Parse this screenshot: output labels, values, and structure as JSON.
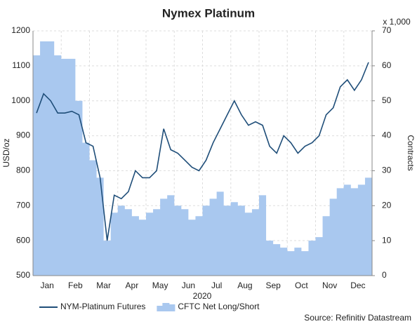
{
  "chart_data": {
    "type": "line-area",
    "title": "Nymex Platinum",
    "x_label": "2020",
    "y_label": "USD/oz",
    "y2_label": "Contracts",
    "y2_unit": "x 1,000",
    "source": "Source: Refinitiv Datastream",
    "categories": [
      "Jan",
      null,
      null,
      null,
      "Feb",
      null,
      null,
      null,
      "Mar",
      null,
      null,
      null,
      "Apr",
      null,
      null,
      null,
      "May",
      null,
      null,
      null,
      "Jun",
      null,
      null,
      null,
      "Jul",
      null,
      null,
      null,
      "Aug",
      null,
      null,
      null,
      "Sep",
      null,
      null,
      null,
      "Oct",
      null,
      null,
      null,
      "Nov",
      null,
      null,
      null,
      "Dec",
      null,
      null,
      null
    ],
    "series": [
      {
        "name": "NYM-Platinum Futures",
        "color": "#1f4e79",
        "type": "line",
        "values": [
          965,
          1020,
          1000,
          965,
          965,
          970,
          960,
          880,
          870,
          780,
          600,
          730,
          720,
          740,
          800,
          780,
          780,
          800,
          920,
          860,
          850,
          830,
          810,
          800,
          830,
          880,
          920,
          960,
          1000,
          960,
          930,
          940,
          930,
          870,
          850,
          900,
          880,
          850,
          870,
          880,
          900,
          960,
          980,
          1040,
          1060,
          1030,
          1060,
          1110
        ]
      },
      {
        "name": "CFTC Net Long/Short",
        "color": "#a9c8ef",
        "type": "area",
        "axis": "y2",
        "values": [
          63,
          67,
          67,
          63,
          62,
          62,
          50,
          38,
          33,
          28,
          10,
          18,
          20,
          19,
          17,
          16,
          18,
          19,
          22,
          23,
          20,
          19,
          16,
          17,
          20,
          22,
          24,
          20,
          21,
          20,
          18,
          19,
          23,
          10,
          9,
          8,
          7,
          8,
          7,
          10,
          11,
          17,
          22,
          25,
          26,
          25,
          26,
          28
        ]
      }
    ],
    "ylim": [
      500,
      1200
    ],
    "yticks": [
      500,
      600,
      700,
      800,
      900,
      1000,
      1100,
      1200
    ],
    "y2lim": [
      0,
      70
    ],
    "y2ticks": [
      0,
      10,
      20,
      30,
      40,
      50,
      60,
      70
    ],
    "grid": true
  }
}
